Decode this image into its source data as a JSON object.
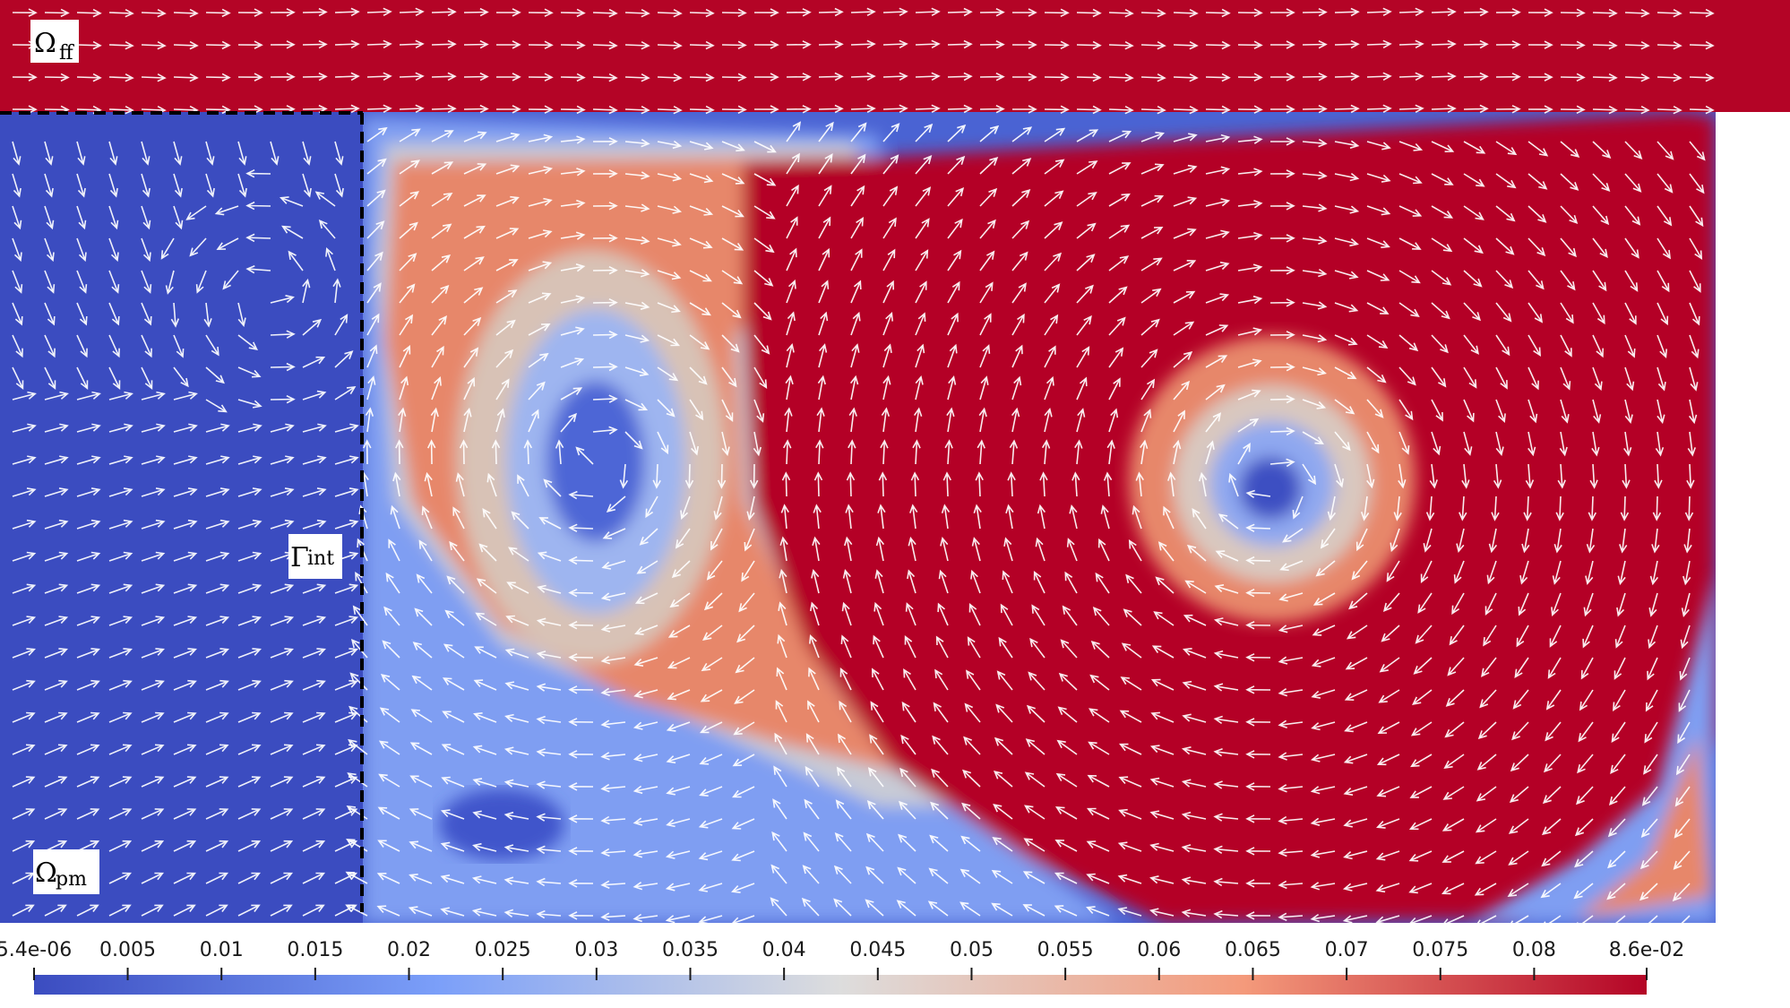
{
  "labels": {
    "free_flow": {
      "symbol": "Ω",
      "sub": "ff"
    },
    "porous_medium": {
      "symbol": "Ω",
      "sub": "pm"
    },
    "interface": {
      "symbol": "Γ",
      "sub": "int"
    }
  },
  "colors": {
    "low": "#3b4cc0",
    "mid": "#dddddd",
    "high": "#b40426",
    "arrow": "#ffffff",
    "interface_line": "#000000"
  },
  "chart_data": {
    "type": "heatmap",
    "description_of_field": "velocity magnitude with velocity vectors",
    "colormap": "cool to warm",
    "color_range": [
      5.4e-06,
      0.086
    ],
    "colorbar": {
      "tick_values": [
        5.4e-06,
        0.005,
        0.01,
        0.015,
        0.02,
        0.025,
        0.03,
        0.035,
        0.04,
        0.045,
        0.05,
        0.055,
        0.06,
        0.065,
        0.07,
        0.075,
        0.08,
        0.086
      ],
      "tick_labels": [
        "5.4e-06",
        "0.005",
        "0.01",
        "0.015",
        "0.02",
        "0.025",
        "0.03",
        "0.035",
        "0.04",
        "0.045",
        "0.05",
        "0.055",
        "0.06",
        "0.065",
        "0.07",
        "0.075",
        "0.08",
        "8.6e-02"
      ]
    }
  }
}
